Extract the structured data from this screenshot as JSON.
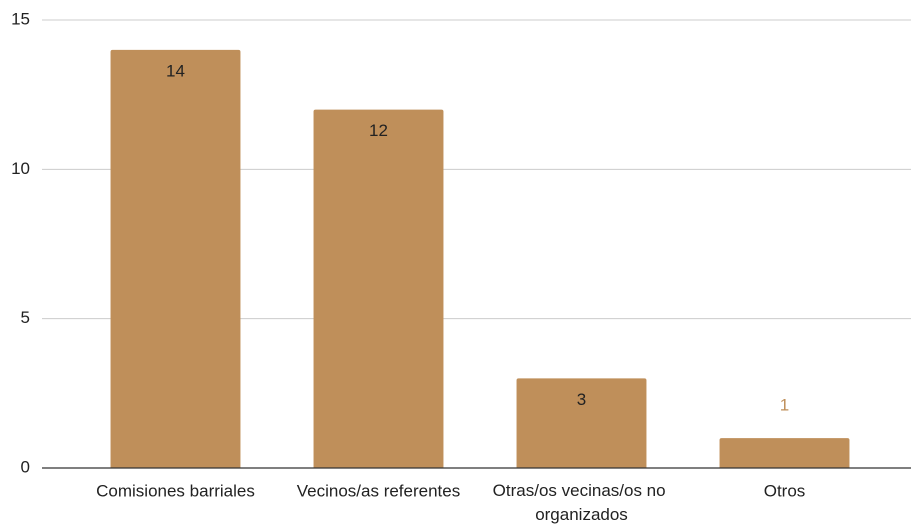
{
  "chart_data": {
    "type": "bar",
    "categories": [
      "Comisiones barriales",
      "Vecinos/as referentes",
      "Otras/os vecinas/os no organizados",
      "Otros"
    ],
    "values": [
      14,
      12,
      3,
      1
    ],
    "color": "#bf8f5a",
    "ylim": [
      0,
      15
    ],
    "yticks": [
      0,
      5,
      10,
      15
    ],
    "grid": true
  }
}
